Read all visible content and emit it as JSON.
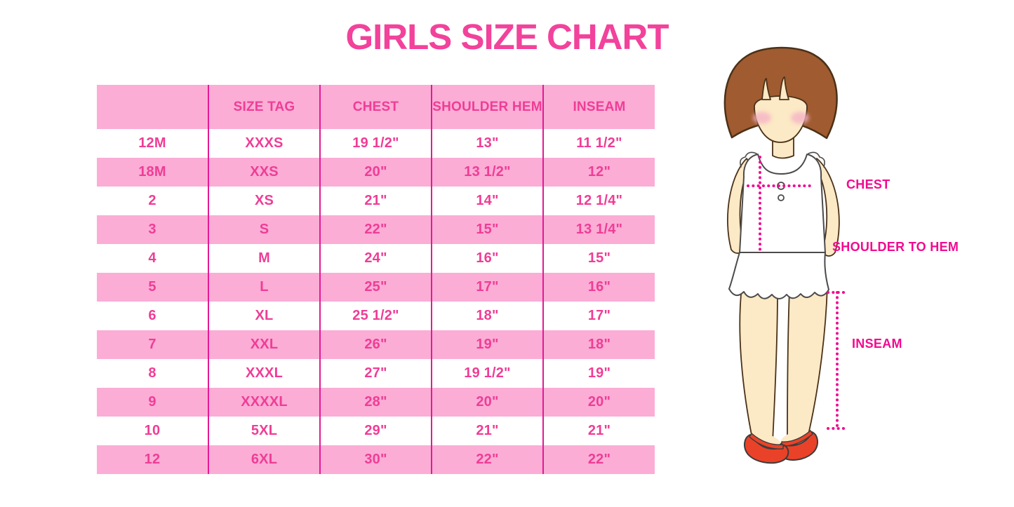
{
  "title": "GIRLS SIZE CHART",
  "chart_data": {
    "type": "table",
    "title": "GIRLS SIZE CHART",
    "headers": [
      "",
      "SIZE TAG",
      "CHEST",
      "SHOULDER HEM",
      "INSEAM"
    ],
    "rows": [
      [
        "12M",
        "XXXS",
        "19 1/2\"",
        "13\"",
        "11 1/2\""
      ],
      [
        "18M",
        "XXS",
        "20\"",
        "13 1/2\"",
        "12\""
      ],
      [
        "2",
        "XS",
        "21\"",
        "14\"",
        "12 1/4\""
      ],
      [
        "3",
        "S",
        "22\"",
        "15\"",
        "13 1/4\""
      ],
      [
        "4",
        "M",
        "24\"",
        "16\"",
        "15\""
      ],
      [
        "5",
        "L",
        "25\"",
        "17\"",
        "16\""
      ],
      [
        "6",
        "XL",
        "25 1/2\"",
        "18\"",
        "17\""
      ],
      [
        "7",
        "XXL",
        "26\"",
        "19\"",
        "18\""
      ],
      [
        "8",
        "XXXL",
        "27\"",
        "19 1/2\"",
        "19\""
      ],
      [
        "9",
        "XXXXL",
        "28\"",
        "20\"",
        "20\""
      ],
      [
        "10",
        "5XL",
        "29\"",
        "21\"",
        "21\""
      ],
      [
        "12",
        "6XL",
        "30\"",
        "22\"",
        "22\""
      ]
    ]
  },
  "figure": {
    "chest_label": "CHEST",
    "shoulder_to_hem_label": "SHOULDER TO HEM",
    "inseam_label": "INSEAM"
  },
  "colors": {
    "title_pink": "#F2429B",
    "row_pink": "#FBADD6",
    "cell_text_pink": "#EF3D96",
    "grid_magenta": "#E31A95",
    "label_magenta": "#F20A8F",
    "hair_brown": "#A05B30",
    "hair_outline": "#4A3118",
    "skin": "#FCE9C5",
    "blush": "#F6B3C6",
    "shoe_red": "#EA4228",
    "outline_gray": "#4B4B4B"
  }
}
